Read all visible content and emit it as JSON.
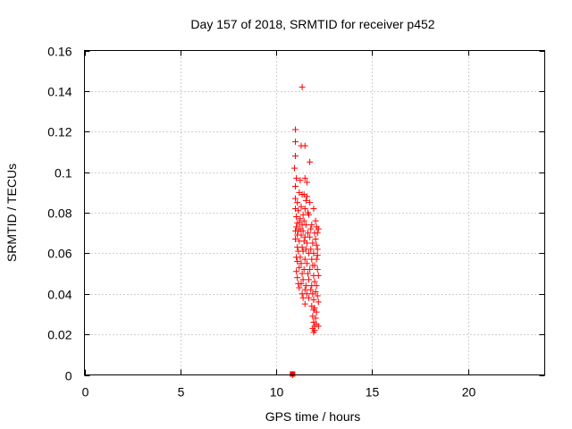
{
  "chart_data": {
    "type": "scatter",
    "title": "Day 157 of 2018, SRMTID for receiver p452",
    "xlabel": "GPS time / hours",
    "ylabel": "SRMTID / TECUs",
    "xlim": [
      0,
      24
    ],
    "ylim": [
      0,
      0.16
    ],
    "x_ticks": [
      0,
      5,
      10,
      15,
      20
    ],
    "x_tick_labels": [
      "0",
      "5",
      "10",
      "15",
      "20"
    ],
    "y_ticks": [
      0,
      0.02,
      0.04,
      0.06,
      0.08,
      0.1,
      0.12,
      0.14,
      0.16
    ],
    "y_tick_labels": [
      "0",
      "0.02",
      "0.04",
      "0.06",
      "0.08",
      "0.1",
      "0.12",
      "0.14",
      "0.16"
    ],
    "grid": true,
    "marker": "plus",
    "marker_color": "#ff0000",
    "series": [
      {
        "name": "SRMTID",
        "x": [
          11.35,
          11.0,
          11.0,
          11.3,
          11.5,
          11.0,
          11.75,
          10.95,
          11.05,
          11.5,
          11.25,
          11.6,
          11.0,
          11.2,
          11.35,
          11.45,
          11.6,
          11.0,
          11.55,
          11.1,
          11.75,
          11.3,
          11.0,
          11.5,
          11.95,
          11.15,
          11.65,
          11.4,
          11.7,
          11.05,
          11.25,
          11.45,
          12.05,
          11.1,
          11.2,
          11.35,
          11.55,
          11.85,
          12.1,
          11.05,
          11.25,
          11.8,
          12.2,
          11.0,
          11.15,
          11.4,
          11.65,
          12.0,
          12.15,
          11.1,
          11.3,
          11.5,
          11.75,
          12.05,
          11.0,
          11.2,
          11.45,
          11.6,
          11.9,
          12.1,
          11.1,
          11.35,
          11.55,
          11.8,
          12.15,
          11.15,
          11.4,
          11.7,
          11.95,
          12.15,
          11.05,
          11.25,
          11.5,
          11.85,
          12.1,
          11.1,
          11.3,
          11.6,
          11.9,
          12.0,
          11.2,
          11.45,
          11.75,
          12.15,
          11.05,
          11.35,
          11.65,
          11.95,
          12.2,
          11.1,
          11.4,
          11.7,
          12.0,
          11.15,
          11.3,
          11.55,
          11.85,
          12.1,
          11.2,
          11.5,
          11.8,
          12.05,
          11.35,
          11.6,
          11.9,
          12.15,
          11.4,
          11.7,
          11.95,
          12.2,
          11.5,
          11.85,
          12.0,
          11.95,
          12.1,
          11.9,
          12.05,
          11.95,
          12.1,
          12.0,
          11.9,
          12.2,
          12.0,
          11.95,
          10.85
        ],
        "y": [
          0.142,
          0.121,
          0.115,
          0.113,
          0.113,
          0.108,
          0.105,
          0.102,
          0.097,
          0.097,
          0.096,
          0.095,
          0.093,
          0.09,
          0.089,
          0.089,
          0.088,
          0.087,
          0.086,
          0.085,
          0.085,
          0.083,
          0.082,
          0.082,
          0.082,
          0.081,
          0.08,
          0.079,
          0.079,
          0.078,
          0.077,
          0.076,
          0.076,
          0.075,
          0.075,
          0.074,
          0.074,
          0.074,
          0.073,
          0.073,
          0.072,
          0.072,
          0.072,
          0.071,
          0.071,
          0.071,
          0.07,
          0.07,
          0.07,
          0.069,
          0.069,
          0.068,
          0.068,
          0.067,
          0.067,
          0.066,
          0.066,
          0.065,
          0.065,
          0.064,
          0.063,
          0.063,
          0.062,
          0.062,
          0.062,
          0.061,
          0.061,
          0.06,
          0.06,
          0.059,
          0.058,
          0.058,
          0.057,
          0.057,
          0.057,
          0.056,
          0.055,
          0.055,
          0.054,
          0.054,
          0.053,
          0.052,
          0.052,
          0.052,
          0.051,
          0.05,
          0.05,
          0.049,
          0.049,
          0.048,
          0.047,
          0.047,
          0.046,
          0.045,
          0.045,
          0.044,
          0.044,
          0.044,
          0.043,
          0.042,
          0.042,
          0.041,
          0.04,
          0.04,
          0.04,
          0.039,
          0.038,
          0.038,
          0.037,
          0.036,
          0.035,
          0.034,
          0.033,
          0.032,
          0.031,
          0.029,
          0.028,
          0.026,
          0.025,
          0.024,
          0.023,
          0.024,
          0.022,
          0.021,
          0.0
        ]
      }
    ]
  }
}
